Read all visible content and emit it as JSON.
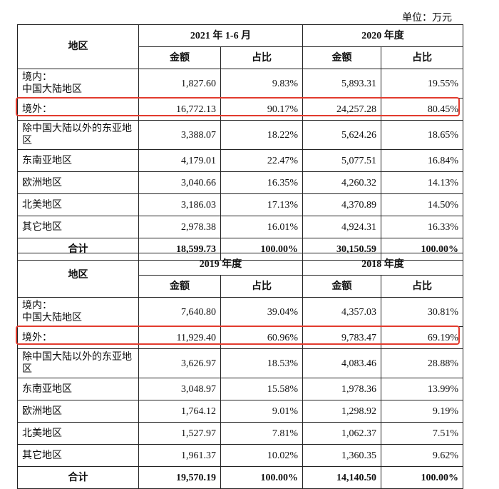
{
  "unit_label": "单位：万元",
  "region_header": "地区",
  "sections": [
    {
      "period1": "2021 年 1-6 月",
      "period2": "2020 年度",
      "col_amount": "金额",
      "col_share": "占比",
      "rows": [
        {
          "region": "境内：\n中国大陆地区",
          "a1": "1,827.60",
          "s1": "9.83%",
          "a2": "5,893.31",
          "s2": "19.55%"
        },
        {
          "region": "境外：",
          "a1": "16,772.13",
          "s1": "90.17%",
          "a2": "24,257.28",
          "s2": "80.45%"
        },
        {
          "region": "除中国大陆以外的东亚地区",
          "a1": "3,388.07",
          "s1": "18.22%",
          "a2": "5,624.26",
          "s2": "18.65%"
        },
        {
          "region": "东南亚地区",
          "a1": "4,179.01",
          "s1": "22.47%",
          "a2": "5,077.51",
          "s2": "16.84%"
        },
        {
          "region": "欧洲地区",
          "a1": "3,040.66",
          "s1": "16.35%",
          "a2": "4,260.32",
          "s2": "14.13%"
        },
        {
          "region": "北美地区",
          "a1": "3,186.03",
          "s1": "17.13%",
          "a2": "4,370.89",
          "s2": "14.50%"
        },
        {
          "region": "其它地区",
          "a1": "2,978.38",
          "s1": "16.01%",
          "a2": "4,924.31",
          "s2": "16.33%"
        }
      ],
      "total": {
        "label": "合计",
        "a1": "18,599.73",
        "s1": "100.00%",
        "a2": "30,150.59",
        "s2": "100.00%"
      }
    },
    {
      "period1": "2019 年度",
      "period2": "2018 年度",
      "col_amount": "金额",
      "col_share": "占比",
      "rows": [
        {
          "region": "境内：\n中国大陆地区",
          "a1": "7,640.80",
          "s1": "39.04%",
          "a2": "4,357.03",
          "s2": "30.81%"
        },
        {
          "region": "境外：",
          "a1": "11,929.40",
          "s1": "60.96%",
          "a2": "9,783.47",
          "s2": "69.19%"
        },
        {
          "region": "除中国大陆以外的东亚地区",
          "a1": "3,626.97",
          "s1": "18.53%",
          "a2": "4,083.46",
          "s2": "28.88%"
        },
        {
          "region": "东南亚地区",
          "a1": "3,048.97",
          "s1": "15.58%",
          "a2": "1,978.36",
          "s2": "13.99%"
        },
        {
          "region": "欧洲地区",
          "a1": "1,764.12",
          "s1": "9.01%",
          "a2": "1,298.92",
          "s2": "9.19%"
        },
        {
          "region": "北美地区",
          "a1": "1,527.97",
          "s1": "7.81%",
          "a2": "1,062.37",
          "s2": "7.51%"
        },
        {
          "region": "其它地区",
          "a1": "1,961.37",
          "s1": "10.02%",
          "a2": "1,360.35",
          "s2": "9.62%"
        }
      ],
      "total": {
        "label": "合计",
        "a1": "19,570.19",
        "s1": "100.00%",
        "a2": "14,140.50",
        "s2": "100.00%"
      }
    }
  ]
}
